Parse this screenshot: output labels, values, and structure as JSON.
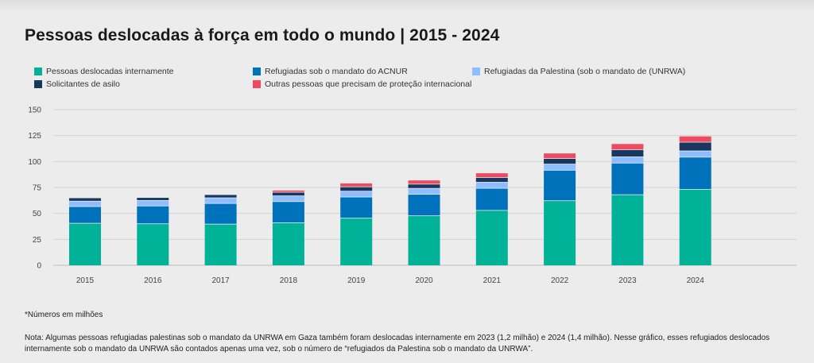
{
  "title": "Pessoas deslocadas à força em todo o mundo | 2015 - 2024",
  "legend": [
    {
      "label": "Pessoas deslocadas internamente",
      "color": "#00b398"
    },
    {
      "label": "Refugiadas sob o mandato do ACNUR",
      "color": "#0072bc"
    },
    {
      "label": "Refugiadas da Palestina (sob o mandato de (UNRWA)",
      "color": "#8ebeff"
    },
    {
      "label": "Solicitantes de asilo",
      "color": "#18375f"
    },
    {
      "label": "Outras pessoas que precisam de proteção internacional",
      "color": "#ef4a60"
    }
  ],
  "chart_data": {
    "type": "bar",
    "stacked": true,
    "categories": [
      "2015",
      "2016",
      "2017",
      "2018",
      "2019",
      "2020",
      "2021",
      "2022",
      "2023",
      "2024"
    ],
    "series": [
      {
        "name": "Pessoas deslocadas internamente",
        "color": "#00b398",
        "values": [
          40.8,
          40.3,
          40.0,
          41.3,
          45.7,
          48.0,
          53.2,
          62.5,
          68.3,
          73.5
        ]
      },
      {
        "name": "Refugiadas sob o mandato do ACNUR",
        "color": "#0072bc",
        "values": [
          16.1,
          17.2,
          19.9,
          20.4,
          20.4,
          20.7,
          21.3,
          29.4,
          30.5,
          31.0
        ]
      },
      {
        "name": "Refugiadas da Palestina (sob o mandato de (UNRWA)",
        "color": "#8ebeff",
        "values": [
          5.2,
          5.3,
          5.4,
          5.5,
          5.6,
          5.7,
          5.8,
          5.9,
          6.0,
          6.0
        ]
      },
      {
        "name": "Solicitantes de asilo",
        "color": "#18375f",
        "values": [
          3.2,
          2.8,
          3.1,
          3.5,
          4.2,
          4.1,
          4.6,
          5.4,
          6.9,
          8.4
        ]
      },
      {
        "name": "Outras pessoas que precisam de proteção internacional",
        "color": "#ef4a60",
        "values": [
          0,
          0,
          0,
          2.0,
          3.6,
          3.9,
          4.4,
          5.2,
          5.8,
          5.9
        ]
      }
    ],
    "yticks": [
      0,
      25,
      50,
      75,
      100,
      125,
      150
    ],
    "ylim": [
      0,
      150
    ],
    "grid": true,
    "legend_position": "top"
  },
  "footnote": "*Números em milhões",
  "note": "Nota: Algumas pessoas refugiadas palestinas sob o mandato da UNRWA em Gaza também foram deslocadas internamente em 2023 (1,2 milhão) e 2024 (1,4 milhão). Nesse gráfico, esses refugiados deslocados internamente sob o mandato da UNRWA são contados apenas uma vez, sob o número de “refugiados da Palestina sob o mandato da UNRWA”."
}
